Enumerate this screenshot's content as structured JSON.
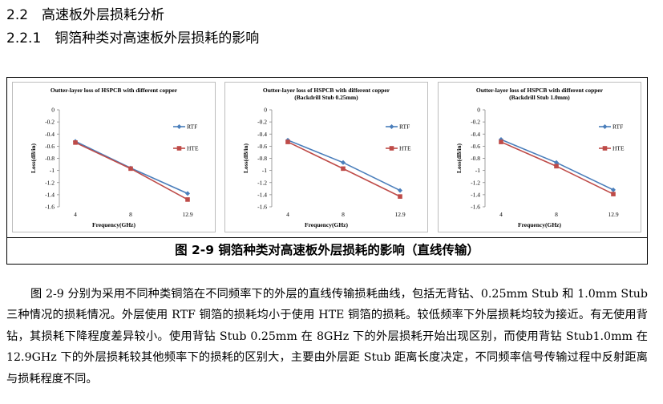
{
  "section": {
    "title": "2.2　高速板外层损耗分析"
  },
  "subsection": {
    "title": "2.2.1　铜箔种类对高速板外层损耗的影响"
  },
  "figure": {
    "caption": "图 2-9 铜箔种类对高速板外层损耗的影响（直线传输）"
  },
  "colors": {
    "RTF": "#4a7ebb",
    "HTE": "#be4b48"
  },
  "chart_data": [
    {
      "type": "line",
      "title": [
        "Outter-layer loss of HSPCB with different copper"
      ],
      "xlabel": "Frequency(GHz)",
      "ylabel": "Loss(dB/in)",
      "categories": [
        "4",
        "8",
        "12.9"
      ],
      "ylim": [
        -1.6,
        0
      ],
      "yticks": [
        "0",
        "-0.2",
        "-0.4",
        "-0.6",
        "-0.8",
        "-1",
        "-1.2",
        "-1.4",
        "-1.6"
      ],
      "legend_position": "right",
      "series": [
        {
          "name": "RTF",
          "values": [
            -0.52,
            -0.96,
            -1.38
          ]
        },
        {
          "name": "HTE",
          "values": [
            -0.54,
            -0.97,
            -1.48
          ]
        }
      ]
    },
    {
      "type": "line",
      "title": [
        "Outter-layer loss of HSPCB with different copper",
        "(Backdrill Stub 0.25mm)"
      ],
      "xlabel": "Frequency(GHz)",
      "ylabel": "Loss(dB/in)",
      "categories": [
        "4",
        "8",
        "12.9"
      ],
      "ylim": [
        -1.6,
        0
      ],
      "yticks": [
        "0",
        "-0.2",
        "-0.4",
        "-0.6",
        "-0.8",
        "-1",
        "-1.2",
        "-1.4",
        "-1.6"
      ],
      "legend_position": "right",
      "series": [
        {
          "name": "RTF",
          "values": [
            -0.5,
            -0.87,
            -1.33
          ]
        },
        {
          "name": "HTE",
          "values": [
            -0.53,
            -0.97,
            -1.43
          ]
        }
      ]
    },
    {
      "type": "line",
      "title": [
        "Outter-layer loss of HSPCB with different copper",
        "(Backdrill Stub 1.0mm)"
      ],
      "xlabel": "Frequency(GHz)",
      "ylabel": "Loss(dB/in)",
      "categories": [
        "4",
        "8",
        "12.9"
      ],
      "ylim": [
        -1.6,
        0
      ],
      "yticks": [
        "0",
        "-0.2",
        "-0.4",
        "-0.6",
        "-0.8",
        "-1",
        "-1.2",
        "-1.4",
        "-1.6"
      ],
      "legend_position": "right",
      "series": [
        {
          "name": "RTF",
          "values": [
            -0.49,
            -0.87,
            -1.32
          ]
        },
        {
          "name": "HTE",
          "values": [
            -0.53,
            -0.93,
            -1.39
          ]
        }
      ]
    }
  ],
  "body": {
    "paragraph": "图 2-9 分别为采用不同种类铜箔在不同频率下的外层的直线传输损耗曲线，包括无背钻、0.25mm Stub 和 1.0mm Stub 三种情况的损耗情况。外层使用 RTF 铜箔的损耗均小于使用 HTE 铜箔的损耗。较低频率下外层损耗均较为接近。有无使用背钻，其损耗下降程度差异较小。使用背钻 Stub 0.25mm 在 8GHz 下的外层损耗开始出现区别，而使用背钻 Stub1.0mm 在 12.9GHz 下的外层损耗较其他频率下的损耗的区别大，主要由外层距 Stub 距离长度决定，不同频率信号传输过程中反射距离与损耗程度不同。"
  }
}
